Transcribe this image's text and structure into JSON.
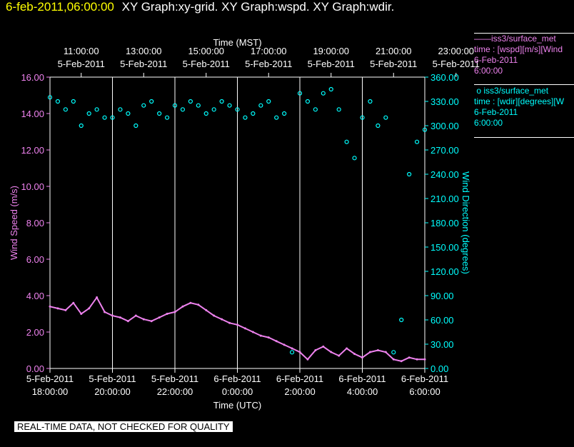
{
  "header": {
    "date": "6-feb-2011,06:00:00",
    "graphs": "XY Graph:xy-grid.  XY Graph:wspd.  XY Graph:wdir."
  },
  "legend": [
    {
      "name": "iss3/surface_met",
      "variable": "time : [wspd][m/s][Wind",
      "date": "6-Feb-2011",
      "time": "6:00:00",
      "color": "#ee82ee",
      "marker": "line"
    },
    {
      "name": "iss3/surface_met",
      "variable": "time : [wdir][degrees][W",
      "date": "6-Feb-2011",
      "time": "6:00:00",
      "color": "#00ffff",
      "marker": "circle"
    }
  ],
  "disclaimer": "REAL-TIME DATA, NOT CHECKED FOR QUALITY",
  "colors": {
    "background": "#000000",
    "wspd": "#ee82ee",
    "wdir": "#00ffff",
    "title": "#ffff00",
    "axes": "#ffffff"
  },
  "chart_data": {
    "type": "line",
    "top_xlabel": "Time (MST)",
    "bottom_xlabel": "Time (UTC)",
    "ylabel_left": "Wind Speed (m/s)",
    "ylabel_right": "Wind Direction (degrees)",
    "ylim_left": [
      0,
      16
    ],
    "ylim_right": [
      0,
      360
    ],
    "xlim_hours_utc": [
      18,
      30
    ],
    "left_ticks": [
      "0.00",
      "2.00",
      "4.00",
      "6.00",
      "8.00",
      "10.00",
      "12.00",
      "14.00",
      "16.00"
    ],
    "right_ticks": [
      "0.00",
      "30.00",
      "60.00",
      "90.00",
      "120.00",
      "150.00",
      "180.00",
      "210.00",
      "240.00",
      "270.00",
      "300.00",
      "330.00",
      "360.00"
    ],
    "top_ticks": [
      {
        "date": "5-Feb-2011",
        "time": "11:00:00"
      },
      {
        "date": "5-Feb-2011",
        "time": "13:00:00"
      },
      {
        "date": "5-Feb-2011",
        "time": "15:00:00"
      },
      {
        "date": "5-Feb-2011",
        "time": "17:00:00"
      },
      {
        "date": "5-Feb-2011",
        "time": "19:00:00"
      },
      {
        "date": "5-Feb-2011",
        "time": "21:00:00"
      },
      {
        "date": "5-Feb-2011",
        "time": "23:00:00"
      }
    ],
    "bottom_ticks": [
      {
        "date": "5-Feb-2011",
        "time": "18:00:00"
      },
      {
        "date": "5-Feb-2011",
        "time": "20:00:00"
      },
      {
        "date": "5-Feb-2011",
        "time": "22:00:00"
      },
      {
        "date": "6-Feb-2011",
        "time": "0:00:00"
      },
      {
        "date": "6-Feb-2011",
        "time": "2:00:00"
      },
      {
        "date": "6-Feb-2011",
        "time": "4:00:00"
      },
      {
        "date": "6-Feb-2011",
        "time": "6:00:00"
      }
    ],
    "grid": true,
    "series": [
      {
        "name": "iss3/surface_met wspd",
        "axis": "left",
        "style": "line",
        "x": [
          18.0,
          18.25,
          18.5,
          18.75,
          19.0,
          19.25,
          19.5,
          19.75,
          20.0,
          20.25,
          20.5,
          20.75,
          21.0,
          21.25,
          21.5,
          21.75,
          22.0,
          22.25,
          22.5,
          22.75,
          23.0,
          23.25,
          23.5,
          23.75,
          24.0,
          24.25,
          24.5,
          24.75,
          25.0,
          25.25,
          25.5,
          25.75,
          26.0,
          26.25,
          26.5,
          26.75,
          27.0,
          27.25,
          27.5,
          27.75,
          28.0,
          28.25,
          28.5,
          28.75,
          29.0,
          29.25,
          29.5,
          29.75,
          30.0
        ],
        "y": [
          3.4,
          3.3,
          3.2,
          3.6,
          3.0,
          3.3,
          3.9,
          3.1,
          2.9,
          2.8,
          2.6,
          2.9,
          2.7,
          2.6,
          2.8,
          3.0,
          3.1,
          3.4,
          3.6,
          3.5,
          3.2,
          2.9,
          2.7,
          2.5,
          2.4,
          2.2,
          2.0,
          1.8,
          1.7,
          1.5,
          1.3,
          1.1,
          0.9,
          0.5,
          1.0,
          1.2,
          0.9,
          0.7,
          1.1,
          0.8,
          0.6,
          0.9,
          1.0,
          0.9,
          0.5,
          0.4,
          0.6,
          0.5,
          0.5
        ]
      },
      {
        "name": "iss3/surface_met wdir",
        "axis": "right",
        "style": "circle",
        "x": [
          18.0,
          18.25,
          18.5,
          18.75,
          19.0,
          19.25,
          19.5,
          19.75,
          20.0,
          20.25,
          20.5,
          20.75,
          21.0,
          21.25,
          21.5,
          21.75,
          22.0,
          22.25,
          22.5,
          22.75,
          23.0,
          23.25,
          23.5,
          23.75,
          24.0,
          24.25,
          24.5,
          24.75,
          25.0,
          25.25,
          25.5,
          25.75,
          26.0,
          26.25,
          26.5,
          26.75,
          27.0,
          27.25,
          27.5,
          27.75,
          28.0,
          28.25,
          28.5,
          28.75,
          29.0,
          29.25,
          29.5,
          29.75,
          30.0
        ],
        "y": [
          335,
          330,
          320,
          330,
          300,
          315,
          320,
          310,
          310,
          320,
          315,
          300,
          325,
          330,
          315,
          310,
          325,
          320,
          330,
          325,
          315,
          320,
          330,
          325,
          320,
          310,
          315,
          325,
          330,
          310,
          315,
          20,
          340,
          330,
          320,
          340,
          345,
          320,
          280,
          260,
          310,
          330,
          300,
          310,
          20,
          60,
          240,
          280,
          295
        ]
      }
    ]
  }
}
